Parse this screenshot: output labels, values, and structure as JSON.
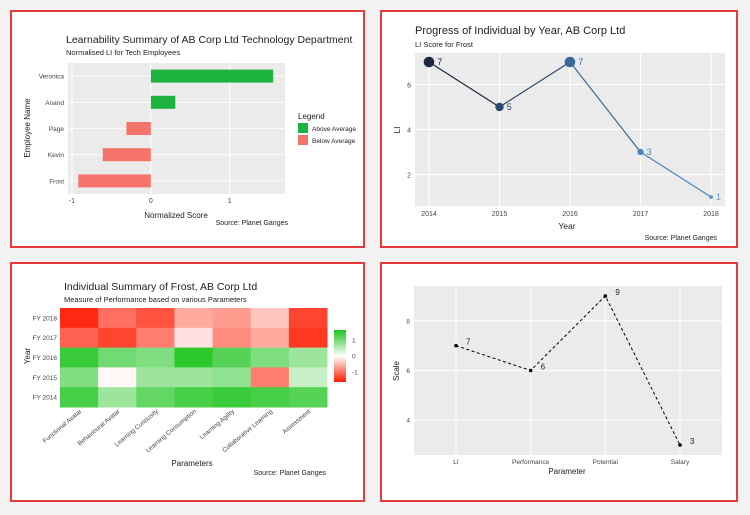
{
  "chart_data": [
    {
      "type": "bar",
      "title": "Learnability Summary of AB Corp Ltd Technology Department",
      "subtitle": "Normalised LI for Tech Employees",
      "xlabel": "Normalized Score",
      "ylabel": "Employee Name",
      "caption": "Source: Planet Ganges",
      "categories": [
        "Frost",
        "Kevin",
        "Page",
        "Anand",
        "Veronica"
      ],
      "values": [
        -0.92,
        -0.61,
        -0.31,
        0.31,
        1.55
      ],
      "groups": [
        "Below Average",
        "Below Average",
        "Below Average",
        "Above Average",
        "Above Average"
      ],
      "xticks": [
        "-1",
        "0",
        "1"
      ],
      "xlim": [
        -1.05,
        1.7
      ],
      "legend_title": "Legend",
      "legend": [
        {
          "label": "Above Average",
          "color": "#1db33e"
        },
        {
          "label": "Below Average",
          "color": "#f4746b"
        }
      ],
      "legend_position": "right"
    },
    {
      "type": "line",
      "title": "Progress of Individual by Year, AB Corp Ltd",
      "subtitle": "LI Score for Frost",
      "xlabel": "Year",
      "ylabel": "LI",
      "caption": "Source: Planet Ganges",
      "x": [
        "2014",
        "2015",
        "2016",
        "2017",
        "2018"
      ],
      "values": [
        7,
        5,
        7,
        3,
        1
      ],
      "labels": [
        "7",
        "5",
        "7",
        "3",
        "1"
      ],
      "yticks": [
        "2",
        "4",
        "6"
      ],
      "ylim": [
        0.6,
        7.4
      ]
    },
    {
      "type": "heatmap",
      "title": "Individual Summary of Frost, AB Corp Ltd",
      "subtitle": "Measure of Performance based on various Parameters",
      "xlabel": "Parameters",
      "ylabel": "Year",
      "caption": "Source: Planet Ganges",
      "columns": [
        "Functional Avatar",
        "Behavioural Avatar",
        "Learning Curiousity",
        "Learning Consumption",
        "Learning Agility",
        "Collaborative Learning",
        "Assessment"
      ],
      "rows": [
        "FY 2018",
        "FY 2017",
        "FY 2016",
        "FY 2015",
        "FY 2014"
      ],
      "values": [
        [
          -1.5,
          -1.0,
          -1.2,
          -0.6,
          -0.7,
          -0.4,
          -1.3
        ],
        [
          -1.1,
          -1.3,
          -0.9,
          -0.2,
          -0.8,
          -0.6,
          -1.4
        ],
        [
          1.4,
          1.0,
          0.9,
          1.5,
          1.2,
          0.9,
          0.7
        ],
        [
          0.9,
          -0.05,
          0.7,
          0.7,
          0.8,
          -0.9,
          0.4
        ],
        [
          1.3,
          0.7,
          1.1,
          1.3,
          1.4,
          1.3,
          1.2
        ]
      ],
      "legend_ticks": [
        "1",
        "0",
        "-1"
      ],
      "legend_position": "right"
    },
    {
      "type": "line",
      "title": "",
      "xlabel": "Parameter",
      "ylabel": "Scale",
      "categories": [
        "LI",
        "Performance",
        "Potential",
        "Salary"
      ],
      "values": [
        7,
        6,
        9,
        3
      ],
      "labels": [
        "7",
        "6",
        "9",
        "3"
      ],
      "yticks": [
        "4",
        "6",
        "8"
      ],
      "ylim": [
        2.6,
        9.4
      ],
      "line_style": "dashed"
    }
  ]
}
